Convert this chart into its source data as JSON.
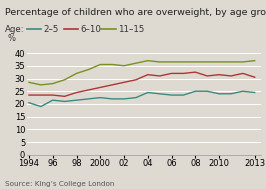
{
  "title": "Percentage of children who are overweight, by age group",
  "ylabel": "%",
  "source": "Source: King’s College London",
  "legend_label": "Age:",
  "series": {
    "2-5": {
      "color": "#3a8a80",
      "label": "2–5",
      "years": [
        1994,
        1995,
        1996,
        1997,
        1998,
        1999,
        2000,
        2001,
        2002,
        2003,
        2004,
        2005,
        2006,
        2007,
        2008,
        2009,
        2010,
        2011,
        2012,
        2013
      ],
      "values": [
        20.5,
        19.0,
        21.5,
        21.0,
        21.5,
        22.0,
        22.5,
        22.0,
        22.0,
        22.5,
        24.5,
        24.0,
        23.5,
        23.5,
        25.0,
        25.0,
        24.0,
        24.0,
        25.0,
        24.5
      ]
    },
    "6-10": {
      "color": "#b03535",
      "label": "6–10",
      "years": [
        1994,
        1995,
        1996,
        1997,
        1998,
        1999,
        2000,
        2001,
        2002,
        2003,
        2004,
        2005,
        2006,
        2007,
        2008,
        2009,
        2010,
        2011,
        2012,
        2013
      ],
      "values": [
        23.5,
        23.5,
        23.5,
        23.0,
        24.5,
        25.5,
        26.5,
        27.5,
        28.5,
        29.5,
        31.5,
        31.0,
        32.0,
        32.0,
        32.5,
        31.0,
        31.5,
        31.0,
        32.0,
        30.5
      ]
    },
    "11-15": {
      "color": "#7a9020",
      "label": "11–15",
      "years": [
        1994,
        1995,
        1996,
        1997,
        1998,
        1999,
        2000,
        2001,
        2002,
        2003,
        2004,
        2005,
        2006,
        2007,
        2008,
        2009,
        2010,
        2011,
        2012,
        2013
      ],
      "values": [
        28.5,
        27.5,
        28.0,
        29.5,
        32.0,
        33.5,
        35.5,
        35.5,
        35.0,
        36.0,
        37.0,
        36.5,
        36.5,
        36.5,
        36.5,
        36.5,
        36.5,
        36.5,
        36.5,
        37.0
      ]
    }
  },
  "xtick_labels": [
    "1994",
    "96",
    "98",
    "2000",
    "02",
    "04",
    "06",
    "08",
    "2010",
    "2013"
  ],
  "xtick_positions": [
    1994,
    1996,
    1998,
    2000,
    2002,
    2004,
    2006,
    2008,
    2010,
    2013
  ],
  "ylim": [
    0,
    43
  ],
  "yticks": [
    0,
    5,
    10,
    15,
    20,
    25,
    30,
    35,
    40
  ],
  "xlim": [
    1993.8,
    2013.5
  ],
  "bg_color": "#dedad2",
  "plot_bg": "#dedad2",
  "grid_color": "#ffffff",
  "title_fontsize": 6.8,
  "tick_fontsize": 6.0,
  "source_fontsize": 5.2,
  "legend_fontsize": 6.2
}
